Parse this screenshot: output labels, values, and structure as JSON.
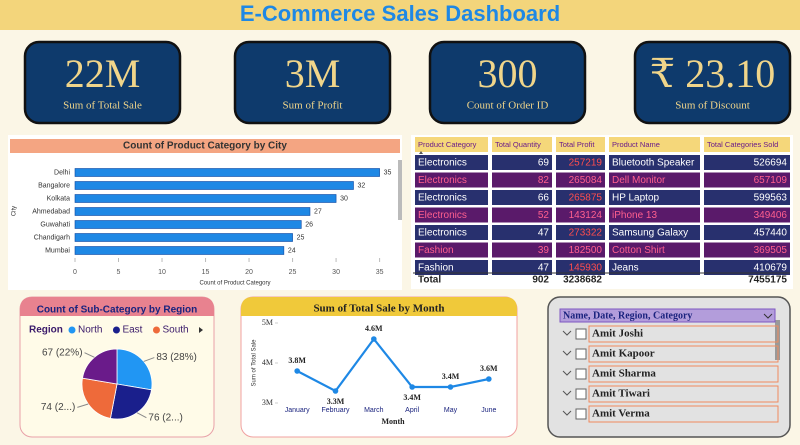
{
  "title": "E-Commerce Sales Dashboard",
  "kpis": [
    {
      "value": "22M",
      "label": "Sum of Total Sale"
    },
    {
      "value": "3M",
      "label": "Sum of Profit"
    },
    {
      "value": "300",
      "label": "Count of Order ID"
    },
    {
      "value": "₹ 23.10",
      "label": "Sum of Discount"
    }
  ],
  "table": {
    "columns": [
      "Product Category",
      "Total Quantity",
      "Total Profit",
      "Product Name",
      "Total Categories Sold"
    ],
    "rows": [
      [
        "Electronics",
        69,
        257219,
        "Bluetooth Speaker",
        526694
      ],
      [
        "Electronics",
        82,
        265084,
        "Dell Monitor",
        657109
      ],
      [
        "Electronics",
        66,
        265875,
        "HP Laptop",
        599563
      ],
      [
        "Electronics",
        52,
        143124,
        "iPhone 13",
        349406
      ],
      [
        "Electronics",
        47,
        273322,
        "Samsung Galaxy",
        457440
      ],
      [
        "Fashion",
        39,
        182500,
        "Cotton Shirt",
        369505
      ],
      [
        "Fashion",
        47,
        145930,
        "Jeans",
        410679
      ]
    ],
    "total": {
      "label": "Total",
      "quantity": 902,
      "profit": 3238682,
      "sold": 7455175
    }
  },
  "slicer": {
    "title": "Name, Date, Region, Category",
    "items": [
      "Amit Joshi",
      "Amit Kapoor",
      "Amit Sharma",
      "Amit Tiwari",
      "Amit Verma"
    ]
  },
  "chart_data": [
    {
      "type": "bar",
      "orientation": "horizontal",
      "title": "Count of Product Category by City",
      "categories": [
        "Delhi",
        "Bangalore",
        "Kolkata",
        "Ahmedabad",
        "Guwahati",
        "Chandigarh",
        "Mumbai"
      ],
      "values": [
        35,
        32,
        30,
        27,
        26,
        25,
        24
      ],
      "color": "#1e88e5",
      "xlabel": "Count of Product Category",
      "ylabel": "City",
      "xlim": [
        0,
        37
      ],
      "xticks": [
        0,
        5,
        10,
        15,
        20,
        25,
        30,
        35
      ]
    },
    {
      "type": "pie",
      "title": "Count of Sub-Category by Region",
      "legend_title": "Region",
      "categories": [
        "North",
        "East",
        "South",
        null
      ],
      "values": [
        83,
        76,
        74,
        67
      ],
      "value_labels": [
        "83 (28%)",
        "76 (2...)",
        "74 (2...)",
        "67 (22%)"
      ],
      "colors": [
        "#2196f3",
        "#1a1f8c",
        "#ee6a3a",
        "#6a1b8a"
      ]
    },
    {
      "type": "line",
      "title": "Sum of Total Sale by Month",
      "categories": [
        "January",
        "February",
        "March",
        "April",
        "May",
        "June"
      ],
      "values": [
        3800000,
        3300000,
        4600000,
        3400000,
        3400000,
        3600000
      ],
      "value_labels": [
        "3.8M",
        "3.3M",
        "4.6M",
        "3.4M",
        "3.4M",
        "3.6M"
      ],
      "color": "#1e88e5",
      "xlabel": "Month",
      "ylabel": "Sum of Total Sale",
      "ylim": [
        3000000,
        5000000
      ],
      "yticks": [
        {
          "value": 3000000,
          "label": "3M"
        },
        {
          "value": 4000000,
          "label": "4M"
        },
        {
          "value": 5000000,
          "label": "5M"
        }
      ]
    }
  ]
}
